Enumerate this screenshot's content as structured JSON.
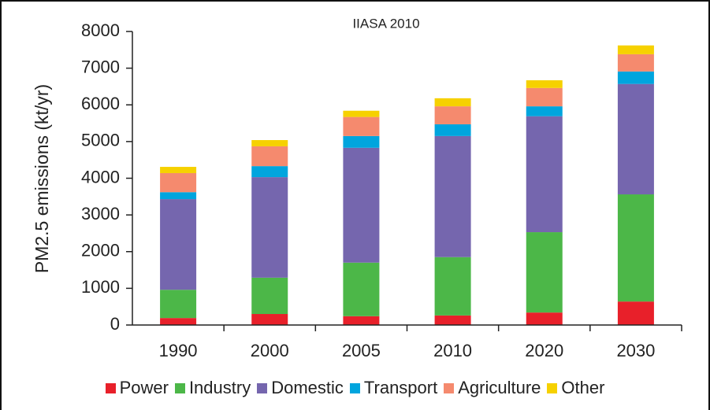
{
  "chart_data": {
    "type": "stacked_bar",
    "title": "IIASA 2010",
    "y_label": "PM2.5 emissions (kt/yr)",
    "categories": [
      "1990",
      "2000",
      "2005",
      "2010",
      "2020",
      "2030"
    ],
    "series": [
      {
        "name": "Power",
        "color": "#e8202a",
        "values": [
          190,
          300,
          240,
          260,
          340,
          640
        ]
      },
      {
        "name": "Industry",
        "color": "#4cb748",
        "values": [
          770,
          990,
          1460,
          1590,
          2190,
          2920
        ]
      },
      {
        "name": "Domestic",
        "color": "#7566ae",
        "values": [
          2470,
          2740,
          3130,
          3300,
          3160,
          3010
        ]
      },
      {
        "name": "Transport",
        "color": "#00a5de",
        "values": [
          190,
          300,
          320,
          320,
          270,
          340
        ]
      },
      {
        "name": "Agriculture",
        "color": "#f58a6e",
        "values": [
          520,
          540,
          520,
          490,
          500,
          470
        ]
      },
      {
        "name": "Other",
        "color": "#f6d100",
        "values": [
          170,
          170,
          170,
          220,
          210,
          240
        ]
      }
    ],
    "ylim": [
      0,
      8000
    ],
    "yticks": [
      0,
      1000,
      2000,
      3000,
      4000,
      5000,
      6000,
      7000,
      8000
    ],
    "grid": false
  }
}
